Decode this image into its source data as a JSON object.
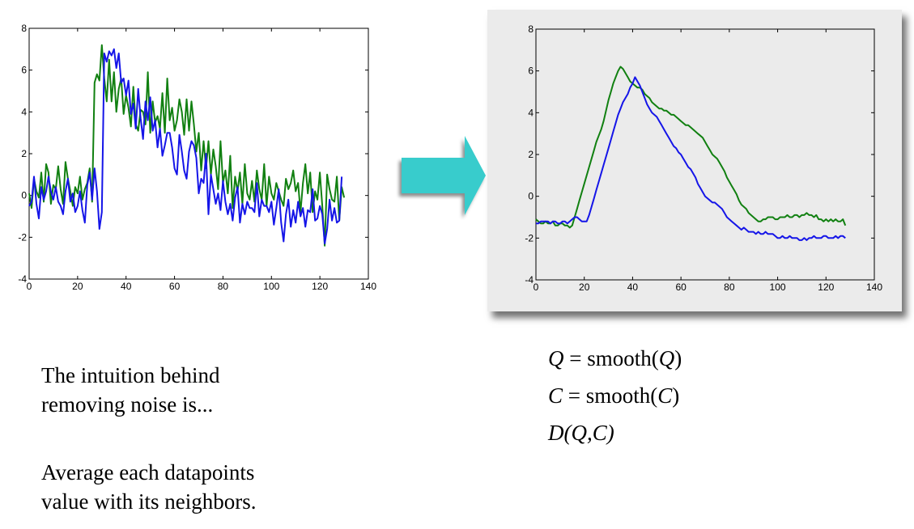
{
  "colors": {
    "green": "#118011",
    "blue": "#1515e8",
    "arrow": "#38cccc",
    "frame_bg": "#ebebeb"
  },
  "charts": [
    {
      "name": "raw",
      "type": "line",
      "xlim": [
        0,
        140
      ],
      "ylim": [
        -4,
        8
      ],
      "xticks": [
        0,
        20,
        40,
        60,
        80,
        100,
        120,
        140
      ],
      "yticks": [
        -4,
        -2,
        0,
        2,
        4,
        6,
        8
      ],
      "series": [
        {
          "name": "green",
          "color": "#118011",
          "x_start": 0,
          "x_step": 1,
          "values": [
            0.1,
            -0.6,
            0.8,
            0.2,
            -0.1,
            1.1,
            -0.3,
            1.5,
            1.1,
            -0.4,
            0.5,
            0.3,
            1.4,
            0.3,
            -0.4,
            1.6,
            0.8,
            0.2,
            -0.5,
            0.4,
            0.1,
            0.9,
            -0.2,
            0.3,
            0.6,
            1.3,
            -0.3,
            5.4,
            5.8,
            5.5,
            7.2,
            5.6,
            4.5,
            6.5,
            4.5,
            5.9,
            4.0,
            5.1,
            5.6,
            3.9,
            4.8,
            4.2,
            3.3,
            5.2,
            3.4,
            3.1,
            4.1,
            4.0,
            3.4,
            5.9,
            3.0,
            4.5,
            3.5,
            3.8,
            3.2,
            4.9,
            3.0,
            5.6,
            3.6,
            4.2,
            3.1,
            3.6,
            4.6,
            4.0,
            2.9,
            4.6,
            3.1,
            4.5,
            3.4,
            2.1,
            3.0,
            1.2,
            2.6,
            1.3,
            2.6,
            1.0,
            2.2,
            1.4,
            0.3,
            2.6,
            0.6,
            1.2,
            0.1,
            1.9,
            -0.6,
            0.9,
            0.2,
            1.1,
            -0.4,
            1.5,
            0.1,
            -0.2,
            0.7,
            -0.3,
            1.2,
            0.3,
            -0.2,
            1.5,
            -0.5,
            0.9,
            0.1,
            -0.2,
            0.6,
            0.2,
            -0.2,
            -0.5,
            0.8,
            0.3,
            0.6,
            1.2,
            0.2,
            0.6,
            -0.8,
            0.6,
            1.5,
            0.1,
            1.1,
            -0.8,
            0.2,
            -0.2,
            1.1,
            -0.5,
            -2.4,
            1.0,
            0.3,
            -0.2,
            -0.3,
            0.9,
            -1.2,
            0.4,
            -0.1
          ]
        },
        {
          "name": "blue",
          "color": "#1515e8",
          "x_start": 0,
          "x_step": 1,
          "values": [
            -0.5,
            -0.3,
            0.9,
            -0.4,
            -1.1,
            0.4,
            -0.2,
            0.2,
            0.9,
            0.2,
            -0.2,
            0.4,
            -0.3,
            -0.5,
            -0.9,
            0.2,
            0.8,
            -0.3,
            0.1,
            -0.8,
            -0.5,
            0.2,
            -0.7,
            -1.3,
            0.5,
            1.1,
            -0.2,
            1.3,
            0.2,
            -1.6,
            -0.8,
            6.8,
            6.4,
            6.9,
            6.7,
            7.0,
            6.1,
            6.8,
            5.4,
            5.6,
            4.8,
            5.5,
            3.9,
            4.4,
            3.2,
            5.1,
            3.7,
            2.7,
            4.5,
            3.6,
            4.7,
            3.1,
            3.6,
            2.3,
            3.2,
            1.9,
            2.4,
            3.0,
            3.0,
            2.3,
            1.3,
            1.0,
            2.9,
            2.1,
            1.2,
            0.8,
            2.1,
            2.6,
            2.4,
            1.8,
            0.1,
            0.8,
            0.6,
            2.0,
            -0.9,
            1.0,
            0.3,
            -0.4,
            0.1,
            -0.7,
            0.7,
            -0.3,
            -0.9,
            -0.4,
            -1.2,
            -0.1,
            0.4,
            -1.3,
            -0.4,
            -0.9,
            -0.3,
            -0.6,
            -0.6,
            -0.8,
            0.6,
            -1.0,
            -0.2,
            -0.5,
            -0.5,
            -0.8,
            -0.3,
            -1.4,
            -0.6,
            0.3,
            -1.3,
            -2.2,
            -0.9,
            -0.2,
            -1.5,
            -0.7,
            -1.3,
            -0.3,
            -1.0,
            -0.6,
            -1.5,
            -0.7,
            -0.8,
            0.3,
            -1.2,
            -1.1,
            -0.5,
            -0.9,
            -2.3,
            -1.6,
            -0.2,
            -1.2,
            -0.6,
            -1.3,
            -1.2,
            0.9
          ]
        }
      ]
    },
    {
      "name": "smoothed",
      "type": "line",
      "xlim": [
        0,
        140
      ],
      "ylim": [
        -4,
        8
      ],
      "xticks": [
        0,
        20,
        40,
        60,
        80,
        100,
        120,
        140
      ],
      "yticks": [
        -4,
        -2,
        0,
        2,
        4,
        6,
        8
      ],
      "series": [
        {
          "name": "green",
          "color": "#118011",
          "x_start": 0,
          "x_step": 1,
          "values": [
            -1.1,
            -1.2,
            -1.3,
            -1.3,
            -1.2,
            -1.3,
            -1.3,
            -1.2,
            -1.4,
            -1.4,
            -1.3,
            -1.3,
            -1.4,
            -1.4,
            -1.5,
            -1.4,
            -1.0,
            -0.6,
            -0.2,
            0.2,
            0.6,
            1.0,
            1.4,
            1.8,
            2.2,
            2.6,
            2.9,
            3.2,
            3.6,
            4.1,
            4.6,
            5.0,
            5.4,
            5.7,
            6.0,
            6.2,
            6.1,
            5.9,
            5.7,
            5.5,
            5.4,
            5.3,
            5.2,
            5.2,
            5.1,
            4.9,
            4.8,
            4.7,
            4.5,
            4.4,
            4.3,
            4.2,
            4.2,
            4.1,
            4.1,
            4.0,
            3.9,
            3.9,
            3.8,
            3.7,
            3.6,
            3.5,
            3.4,
            3.4,
            3.3,
            3.2,
            3.1,
            3.0,
            2.9,
            2.8,
            2.6,
            2.4,
            2.2,
            2.0,
            1.9,
            1.8,
            1.6,
            1.4,
            1.2,
            0.9,
            0.7,
            0.5,
            0.3,
            0.1,
            -0.2,
            -0.4,
            -0.5,
            -0.6,
            -0.8,
            -0.9,
            -1.0,
            -1.1,
            -1.2,
            -1.2,
            -1.1,
            -1.1,
            -1.0,
            -1.0,
            -1.0,
            -1.1,
            -1.1,
            -1.0,
            -1.0,
            -1.0,
            -0.9,
            -1.0,
            -1.0,
            -0.9,
            -0.9,
            -1.0,
            -0.9,
            -0.9,
            -0.8,
            -0.9,
            -0.9,
            -1.0,
            -0.9,
            -1.1,
            -1.1,
            -1.2,
            -1.1,
            -1.2,
            -1.1,
            -1.2,
            -1.1,
            -1.2,
            -1.2,
            -1.1,
            -1.4
          ]
        },
        {
          "name": "blue",
          "color": "#1515e8",
          "x_start": 0,
          "x_step": 1,
          "values": [
            -1.3,
            -1.3,
            -1.2,
            -1.2,
            -1.2,
            -1.2,
            -1.3,
            -1.2,
            -1.2,
            -1.3,
            -1.3,
            -1.2,
            -1.2,
            -1.3,
            -1.2,
            -1.1,
            -1.0,
            -1.0,
            -1.1,
            -1.2,
            -1.2,
            -1.2,
            -0.9,
            -0.5,
            -0.1,
            0.3,
            0.7,
            1.1,
            1.5,
            1.9,
            2.3,
            2.7,
            3.1,
            3.5,
            3.9,
            4.2,
            4.5,
            4.7,
            4.9,
            5.2,
            5.4,
            5.7,
            5.5,
            5.3,
            5.0,
            4.7,
            4.4,
            4.2,
            4.0,
            3.9,
            3.8,
            3.6,
            3.4,
            3.2,
            3.0,
            2.8,
            2.6,
            2.4,
            2.3,
            2.1,
            2.0,
            1.8,
            1.6,
            1.4,
            1.3,
            1.1,
            0.9,
            0.6,
            0.4,
            0.2,
            0.0,
            -0.1,
            -0.2,
            -0.3,
            -0.3,
            -0.4,
            -0.5,
            -0.6,
            -0.8,
            -1.0,
            -1.1,
            -1.2,
            -1.3,
            -1.4,
            -1.5,
            -1.6,
            -1.5,
            -1.6,
            -1.7,
            -1.7,
            -1.7,
            -1.8,
            -1.7,
            -1.8,
            -1.8,
            -1.7,
            -1.8,
            -1.8,
            -1.8,
            -1.9,
            -2.0,
            -2.0,
            -1.9,
            -2.0,
            -2.0,
            -1.9,
            -2.0,
            -2.0,
            -2.0,
            -2.1,
            -2.1,
            -2.0,
            -2.1,
            -2.0,
            -2.0,
            -1.9,
            -2.0,
            -2.0,
            -2.0,
            -1.9,
            -1.9,
            -2.0,
            -2.0,
            -2.0,
            -1.9,
            -2.0,
            -1.9,
            -1.9,
            -2.0
          ]
        }
      ]
    }
  ],
  "text": {
    "intuition_line1": "The intuition behind",
    "intuition_line2": "removing noise is...",
    "average_line1": "Average each datapoints",
    "average_line2": "value with its neighbors.",
    "f1_var": "Q",
    "f1_mid": " = smooth(",
    "f1_arg": "Q",
    "f1_close": ")",
    "f2_var": "C",
    "f2_mid": " = smooth(",
    "f2_arg": "C",
    "f2_close": ")",
    "f3": "D(Q,C)"
  }
}
